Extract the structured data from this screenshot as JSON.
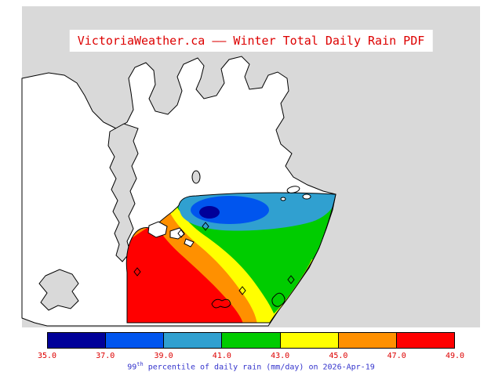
{
  "title": "VictoriaWeather.ca —— Winter Total Daily Rain PDF",
  "title_color": "#dd0000",
  "map": {
    "sea_color": "#d9d9d9",
    "land_color": "#ffffff",
    "outline_color": "#000000"
  },
  "palette": {
    "navy": "#000099",
    "blue": "#0055ee",
    "cyan": "#30a0d0",
    "green": "#00cc00",
    "yellow": "#ffff00",
    "orange": "#ff9000",
    "red": "#ff0000"
  },
  "colorbar": {
    "labels": [
      "35.0",
      "37.0",
      "39.0",
      "41.0",
      "43.0",
      "45.0",
      "47.0",
      "49.0"
    ],
    "colors": [
      "#000099",
      "#0055ee",
      "#30a0d0",
      "#00cc00",
      "#ffff00",
      "#ff9000",
      "#ff0000"
    ],
    "label_color": "#dd0000"
  },
  "caption": {
    "prefix": "99",
    "superscript": "th",
    "rest": " percentile of daily rain (mm/day) on 2026-Apr-19",
    "color": "#3333cc"
  },
  "chart_data": {
    "type": "heatmap",
    "title": "VictoriaWeather.ca —— Winter Total Daily Rain PDF",
    "variable": "99th percentile of daily rain (mm/day)",
    "date": "2026-Apr-19",
    "scale_boundaries": [
      35.0,
      37.0,
      39.0,
      41.0,
      43.0,
      45.0,
      47.0,
      49.0
    ],
    "scale_step": 2.0,
    "legend_position": "bottom",
    "spatial_pattern": "high values (47-49) southwest, decreasing northeast to minimum (35-37) pocket"
  }
}
